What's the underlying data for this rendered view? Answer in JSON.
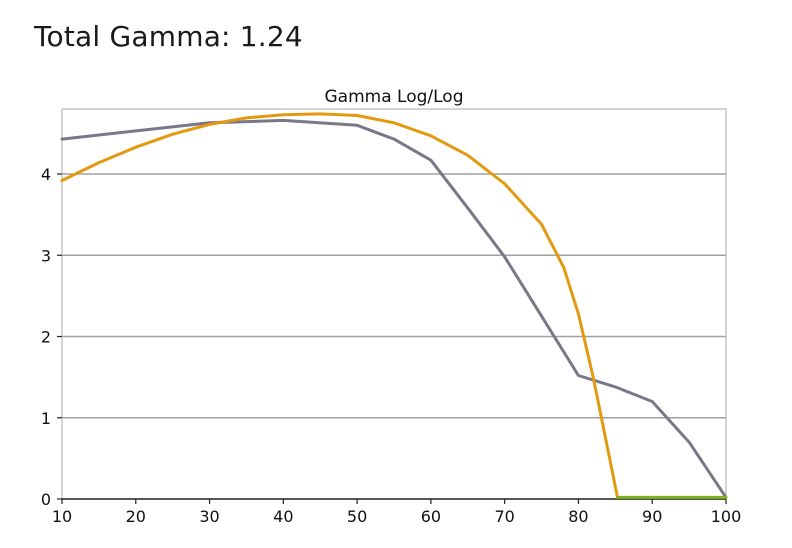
{
  "header": {
    "title": "Total Gamma: 1.24"
  },
  "colors": {
    "gray_series": "#7a7788",
    "orange_series": "#e39a10",
    "green_series": "#7fb21f",
    "grid": "#a0a0a0",
    "frame": "#b8b8b8"
  },
  "chart_data": {
    "type": "line",
    "title": "Gamma Log/Log",
    "xlabel": "",
    "ylabel": "",
    "xlim": [
      10,
      100
    ],
    "ylim": [
      0,
      4.8
    ],
    "x_ticks": [
      10,
      20,
      30,
      40,
      50,
      60,
      70,
      80,
      90,
      100
    ],
    "y_ticks": [
      0,
      1,
      2,
      3,
      4
    ],
    "grid": true,
    "series": [
      {
        "color": "#7a7788",
        "x": [
          10,
          20,
          30,
          40,
          50,
          55,
          60,
          65,
          70,
          75,
          80,
          85,
          90,
          95,
          100
        ],
        "y": [
          4.43,
          4.53,
          4.63,
          4.66,
          4.6,
          4.43,
          4.17,
          3.58,
          2.98,
          2.25,
          1.52,
          1.38,
          1.2,
          0.7,
          0.02
        ]
      },
      {
        "color": "#e39a10",
        "x": [
          10,
          15,
          20,
          25,
          30,
          35,
          40,
          45,
          50,
          55,
          60,
          65,
          70,
          75,
          78,
          80,
          82,
          84,
          85.3
        ],
        "y": [
          3.92,
          4.14,
          4.33,
          4.49,
          4.61,
          4.69,
          4.73,
          4.74,
          4.72,
          4.63,
          4.47,
          4.23,
          3.88,
          3.38,
          2.85,
          2.28,
          1.5,
          0.6,
          0.02
        ]
      },
      {
        "color": "#7fb21f",
        "x": [
          85.3,
          100
        ],
        "y": [
          0.02,
          0.02
        ]
      }
    ]
  }
}
